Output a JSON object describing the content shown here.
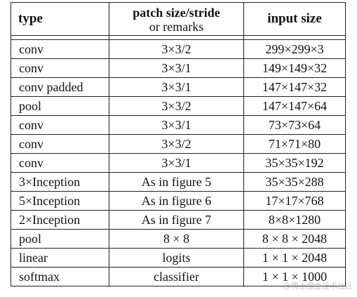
{
  "table": {
    "headers": {
      "type": "type",
      "patch_line1": "patch size/stride",
      "patch_line2": "or remarks",
      "input": "input size"
    },
    "rows": [
      {
        "type": "conv",
        "patch": "3×3/2",
        "input": "299×299×3"
      },
      {
        "type": "conv",
        "patch": "3×3/1",
        "input": "149×149×32"
      },
      {
        "type": "conv padded",
        "patch": "3×3/1",
        "input": "147×147×32"
      },
      {
        "type": "pool",
        "patch": "3×3/2",
        "input": "147×147×64"
      },
      {
        "type": "conv",
        "patch": "3×3/1",
        "input": "73×73×64"
      },
      {
        "type": "conv",
        "patch": "3×3/2",
        "input": "71×71×80"
      },
      {
        "type": "conv",
        "patch": "3×3/1",
        "input": "35×35×192"
      },
      {
        "type": "3×Inception",
        "patch": "As in figure 5",
        "input": "35×35×288"
      },
      {
        "type": "5×Inception",
        "patch": "As in figure 6",
        "input": "17×17×768"
      },
      {
        "type": "2×Inception",
        "patch": "As in figure 7",
        "input": "8×8×1280"
      },
      {
        "type": "pool",
        "patch": "8 × 8",
        "input": "8 × 8 × 2048"
      },
      {
        "type": "linear",
        "patch": "logits",
        "input": "1 × 1 × 2048"
      },
      {
        "type": "softmax",
        "patch": "classifier",
        "input": "1 × 1 × 1000"
      }
    ]
  },
  "watermark": {
    "text": "@稀土掘金技术社区"
  }
}
